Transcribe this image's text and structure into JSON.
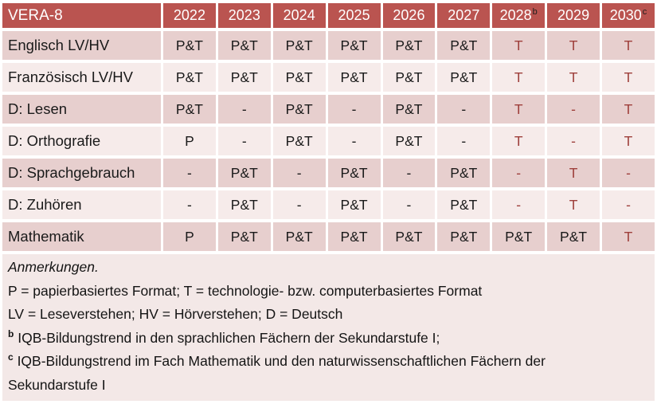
{
  "colors": {
    "header_bg": "#BA5450",
    "header_text": "#FFFFFF",
    "band_dark": "#E7CFCE",
    "band_light": "#F6EBEA",
    "notes_bg": "#F3E8E7",
    "red_value_text": "#9E3F3B",
    "body_text": "#1A1A1A",
    "gap_lines": "#FFFFFF"
  },
  "table": {
    "header": {
      "title": "VERA-8",
      "years": [
        {
          "label": "2022",
          "sup": ""
        },
        {
          "label": "2023",
          "sup": ""
        },
        {
          "label": "2024",
          "sup": ""
        },
        {
          "label": "2025",
          "sup": ""
        },
        {
          "label": "2026",
          "sup": ""
        },
        {
          "label": "2027",
          "sup": ""
        },
        {
          "label": "2028",
          "sup": "b"
        },
        {
          "label": "2029",
          "sup": ""
        },
        {
          "label": "2030",
          "sup": "c"
        }
      ]
    },
    "rows": [
      {
        "label": "Englisch LV/HV",
        "cells": [
          {
            "t": "P&T",
            "red": false
          },
          {
            "t": "P&T",
            "red": false
          },
          {
            "t": "P&T",
            "red": false
          },
          {
            "t": "P&T",
            "red": false
          },
          {
            "t": "P&T",
            "red": false
          },
          {
            "t": "P&T",
            "red": false
          },
          {
            "t": "T",
            "red": true
          },
          {
            "t": "T",
            "red": true
          },
          {
            "t": "T",
            "red": true
          }
        ]
      },
      {
        "label": "Französisch LV/HV",
        "cells": [
          {
            "t": "P&T",
            "red": false
          },
          {
            "t": "P&T",
            "red": false
          },
          {
            "t": "P&T",
            "red": false
          },
          {
            "t": "P&T",
            "red": false
          },
          {
            "t": "P&T",
            "red": false
          },
          {
            "t": "P&T",
            "red": false
          },
          {
            "t": "T",
            "red": true
          },
          {
            "t": "T",
            "red": true
          },
          {
            "t": "T",
            "red": true
          }
        ]
      },
      {
        "label": "D: Lesen",
        "cells": [
          {
            "t": "P&T",
            "red": false
          },
          {
            "t": "-",
            "red": false
          },
          {
            "t": "P&T",
            "red": false
          },
          {
            "t": "-",
            "red": false
          },
          {
            "t": "P&T",
            "red": false
          },
          {
            "t": "-",
            "red": false
          },
          {
            "t": "T",
            "red": true
          },
          {
            "t": "-",
            "red": true
          },
          {
            "t": "T",
            "red": true
          }
        ]
      },
      {
        "label": "D: Orthografie",
        "cells": [
          {
            "t": "P",
            "red": false
          },
          {
            "t": "-",
            "red": false
          },
          {
            "t": "P&T",
            "red": false
          },
          {
            "t": "-",
            "red": false
          },
          {
            "t": "P&T",
            "red": false
          },
          {
            "t": "-",
            "red": false
          },
          {
            "t": "T",
            "red": true
          },
          {
            "t": "-",
            "red": true
          },
          {
            "t": "T",
            "red": true
          }
        ]
      },
      {
        "label": "D: Sprachgebrauch",
        "cells": [
          {
            "t": "-",
            "red": false
          },
          {
            "t": "P&T",
            "red": false
          },
          {
            "t": "-",
            "red": false
          },
          {
            "t": "P&T",
            "red": false
          },
          {
            "t": "-",
            "red": false
          },
          {
            "t": "P&T",
            "red": false
          },
          {
            "t": "-",
            "red": true
          },
          {
            "t": "T",
            "red": true
          },
          {
            "t": "-",
            "red": true
          }
        ]
      },
      {
        "label": "D: Zuhören",
        "cells": [
          {
            "t": "-",
            "red": false
          },
          {
            "t": "P&T",
            "red": false
          },
          {
            "t": "-",
            "red": false
          },
          {
            "t": "P&T",
            "red": false
          },
          {
            "t": "-",
            "red": false
          },
          {
            "t": "P&T",
            "red": false
          },
          {
            "t": "-",
            "red": true
          },
          {
            "t": "T",
            "red": true
          },
          {
            "t": "-",
            "red": true
          }
        ]
      },
      {
        "label": "Mathematik",
        "cells": [
          {
            "t": "P",
            "red": false
          },
          {
            "t": "P&T",
            "red": false
          },
          {
            "t": "P&T",
            "red": false
          },
          {
            "t": "P&T",
            "red": false
          },
          {
            "t": "P&T",
            "red": false
          },
          {
            "t": "P&T",
            "red": false
          },
          {
            "t": "P&T",
            "red": false
          },
          {
            "t": "P&T",
            "red": false
          },
          {
            "t": "T",
            "red": true
          }
        ]
      }
    ]
  },
  "notes": {
    "heading": "Anmerkungen.",
    "line_formats": "P = papierbasiertes Format; T = technologie- bzw. computerbasiertes Format",
    "line_abbrev": "LV = Leseverstehen; HV = Hörverstehen; D = Deutsch",
    "note_b": {
      "sup": "b",
      "text": "IQB-Bildungstrend in den sprachlichen Fächern der Sekundarstufe I;"
    },
    "note_c": {
      "sup": "c",
      "text": "IQB-Bildungstrend im Fach Mathematik und den naturwissenschaftlichen Fächern der Sekundarstufe I"
    }
  }
}
